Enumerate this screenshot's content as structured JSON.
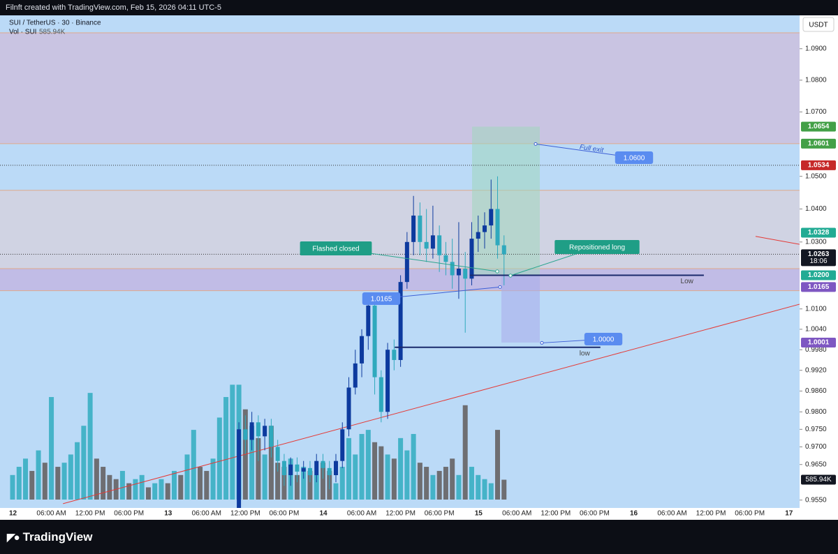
{
  "header": "Filnft created with TradingView.com, Feb 15, 2026 04:11 UTC-5",
  "footer": "TradingView",
  "chart_data": {
    "type": "candlestick",
    "legend": {
      "symbol": "SUI / TetherUS · 30 · Binance",
      "volume": "Vol · SUI"
    },
    "currency": "USDT",
    "log_scale": true,
    "ylim": [
      0.9528,
      1.1007
    ],
    "yticks": [
      {
        "value": 1.09,
        "label": "1.0900"
      },
      {
        "value": 1.08,
        "label": "1.0800"
      },
      {
        "value": 1.07,
        "label": "1.0700"
      },
      {
        "value": 1.05,
        "label": "1.0500"
      },
      {
        "value": 1.04,
        "label": "1.0400"
      },
      {
        "value": 1.03,
        "label": "1.0300"
      },
      {
        "value": 1.01,
        "label": "1.0100"
      },
      {
        "value": 1.004,
        "label": "1.0040"
      },
      {
        "value": 0.998,
        "label": "0.9980"
      },
      {
        "value": 0.992,
        "label": "0.9920"
      },
      {
        "value": 0.986,
        "label": "0.9860"
      },
      {
        "value": 0.98,
        "label": "0.9800"
      },
      {
        "value": 0.975,
        "label": "0.9750"
      },
      {
        "value": 0.97,
        "label": "0.9700"
      },
      {
        "value": 0.965,
        "label": "0.9650"
      },
      {
        "value": 0.955,
        "label": "0.9550"
      }
    ],
    "xticks": [
      "12",
      "06:00 AM",
      "12:00 PM",
      "06:00 PM",
      "13",
      "06:00 AM",
      "12:00 PM",
      "06:00 PM",
      "14",
      "06:00 AM",
      "12:00 PM",
      "06:00 PM",
      "15",
      "06:00 AM",
      "12:00 PM",
      "06:00 PM",
      "16",
      "06:00 AM",
      "12:00 PM",
      "06:00 PM",
      "17"
    ],
    "up_color": "#0d3a9e",
    "down_color": "#2fa9bd",
    "volume_up_color": "#45b3c8",
    "volume_down_color": "#6e6e72",
    "ohlc": [
      null,
      null,
      null,
      null,
      null,
      null,
      null,
      null,
      null,
      null,
      null,
      null,
      null,
      null,
      null,
      null,
      null,
      null,
      null,
      null,
      null,
      null,
      null,
      null,
      null,
      null,
      null,
      null,
      null,
      null,
      null,
      null,
      null,
      null,
      null,
      [
        0.95,
        0.977,
        0.948,
        0.975
      ],
      [
        0.975,
        0.979,
        0.968,
        0.972
      ],
      [
        0.972,
        0.98,
        0.969,
        0.977
      ],
      [
        0.977,
        0.979,
        0.966,
        0.973
      ],
      [
        0.973,
        0.978,
        0.969,
        0.976
      ],
      [
        0.976,
        0.978,
        0.967,
        0.97
      ],
      [
        0.97,
        0.972,
        0.963,
        0.966
      ],
      [
        0.966,
        0.968,
        0.959,
        0.962
      ],
      [
        0.962,
        0.967,
        0.959,
        0.965
      ],
      [
        0.965,
        0.967,
        0.96,
        0.963
      ],
      [
        0.963,
        0.966,
        0.961,
        0.964
      ],
      [
        0.964,
        0.966,
        0.96,
        0.962
      ],
      [
        0.962,
        0.968,
        0.96,
        0.966
      ],
      [
        0.966,
        0.968,
        0.961,
        0.964
      ],
      [
        0.964,
        0.966,
        0.958,
        0.962
      ],
      [
        0.962,
        0.968,
        0.96,
        0.966
      ],
      [
        0.966,
        0.977,
        0.964,
        0.975
      ],
      [
        0.975,
        0.99,
        0.973,
        0.987
      ],
      [
        0.987,
        0.998,
        0.985,
        0.994
      ],
      [
        0.994,
        1.004,
        0.99,
        1.002
      ],
      [
        1.002,
        1.013,
        0.998,
        1.011
      ],
      [
        1.011,
        1.012,
        0.985,
        0.99
      ],
      [
        0.99,
        0.992,
        0.977,
        0.98
      ],
      [
        0.98,
        1.0,
        0.978,
        0.998
      ],
      [
        0.998,
        1.001,
        0.992,
        0.995
      ],
      [
        0.995,
        1.02,
        0.993,
        1.018
      ],
      [
        1.018,
        1.033,
        1.016,
        1.03
      ],
      [
        1.03,
        1.044,
        1.026,
        1.038
      ],
      [
        1.038,
        1.042,
        1.026,
        1.03
      ],
      [
        1.03,
        1.04,
        1.024,
        1.028
      ],
      [
        1.028,
        1.041,
        1.025,
        1.032
      ],
      [
        1.032,
        1.035,
        1.021,
        1.026
      ],
      [
        1.026,
        1.03,
        1.02,
        1.024
      ],
      [
        1.024,
        1.031,
        1.016,
        1.02
      ],
      [
        1.02,
        1.036,
        1.013,
        1.022
      ],
      [
        1.022,
        1.027,
        1.003,
        1.019
      ],
      [
        1.019,
        1.036,
        1.017,
        1.031
      ],
      [
        1.031,
        1.038,
        1.027,
        1.033
      ],
      [
        1.033,
        1.039,
        1.028,
        1.035
      ],
      [
        1.035,
        1.049,
        1.031,
        1.04
      ],
      [
        1.04,
        1.05,
        1.025,
        1.029
      ],
      [
        1.029,
        1.032,
        1.017,
        1.0263
      ]
    ],
    "volume": [
      700,
      900,
      1100,
      800,
      1300,
      1000,
      2600,
      900,
      1000,
      1200,
      1500,
      1900,
      2700,
      1100,
      900,
      700,
      600,
      800,
      500,
      600,
      700,
      400,
      500,
      600,
      500,
      800,
      700,
      1200,
      1800,
      900,
      800,
      1100,
      2100,
      2600,
      2900,
      2900,
      2300,
      1900,
      1600,
      1200,
      1900,
      1000,
      900,
      1100,
      700,
      900,
      800,
      700,
      1000,
      800,
      500,
      900,
      1600,
      1200,
      1700,
      1800,
      1500,
      1400,
      1200,
      1100,
      1600,
      1300,
      1700,
      1000,
      900,
      700,
      800,
      900,
      1100,
      700,
      2400,
      900,
      700,
      600,
      500,
      1800,
      585.94
    ],
    "volume_label": "585.94K",
    "volume_lim": [
      0,
      12000
    ],
    "zones": [
      {
        "top": 1.0951,
        "bottom": 1.0601,
        "color": "rgba(214,178,210,0.55)"
      },
      {
        "top": 1.0457,
        "bottom": 1.022,
        "color": "rgba(222,206,214,0.6)"
      },
      {
        "top": 1.022,
        "bottom": 1.0154,
        "color": "rgba(196,168,218,0.6)"
      }
    ],
    "price_lines": [
      1.0534,
      1.0263
    ],
    "trend_lines": [
      {
        "from": [
          7.8,
          0.954
        ],
        "to": [
          121.7,
          1.0114
        ],
        "color": "#e53935"
      },
      {
        "from": [
          114.9,
          1.0317
        ],
        "to": [
          121.7,
          1.0293
        ],
        "color": "#e53935"
      }
    ],
    "rays": [
      {
        "label": "Low",
        "value": 1.02,
        "from": 70.7,
        "to": 106.9
      },
      {
        "label": "low",
        "value": 0.9987,
        "from": 59.1,
        "to": 90.9
      }
    ],
    "position": {
      "target": 1.0654,
      "entry": 1.02,
      "stop": 1.0001
    },
    "callouts": [
      {
        "value": 1.06,
        "label": "1.0600",
        "note": "Full exit"
      },
      {
        "value": 1.0,
        "label": "1.0000"
      },
      {
        "value": 1.0165,
        "label": "1.0165"
      }
    ],
    "notes": [
      "Flashed closed",
      "Repositioned long"
    ],
    "price_labels": [
      {
        "value": 1.0654,
        "label": "1.0654",
        "color": "#43a047"
      },
      {
        "value": 1.0601,
        "label": "1.0601",
        "color": "#43a047"
      },
      {
        "value": 1.0534,
        "label": "1.0534",
        "color": "#c62828"
      },
      {
        "value": 1.0328,
        "label": "1.0328",
        "color": "#22ab94"
      },
      {
        "value": 1.0263,
        "label": "1.0263",
        "sub": "18:06",
        "color": "#131722"
      },
      {
        "value": 1.02,
        "label": "1.0200",
        "color": "#22ab94"
      },
      {
        "value": 1.0165,
        "label": "1.0165",
        "color": "#7e57c2"
      },
      {
        "value": 1.0001,
        "label": "1.0001",
        "color": "#7e57c2"
      }
    ]
  }
}
